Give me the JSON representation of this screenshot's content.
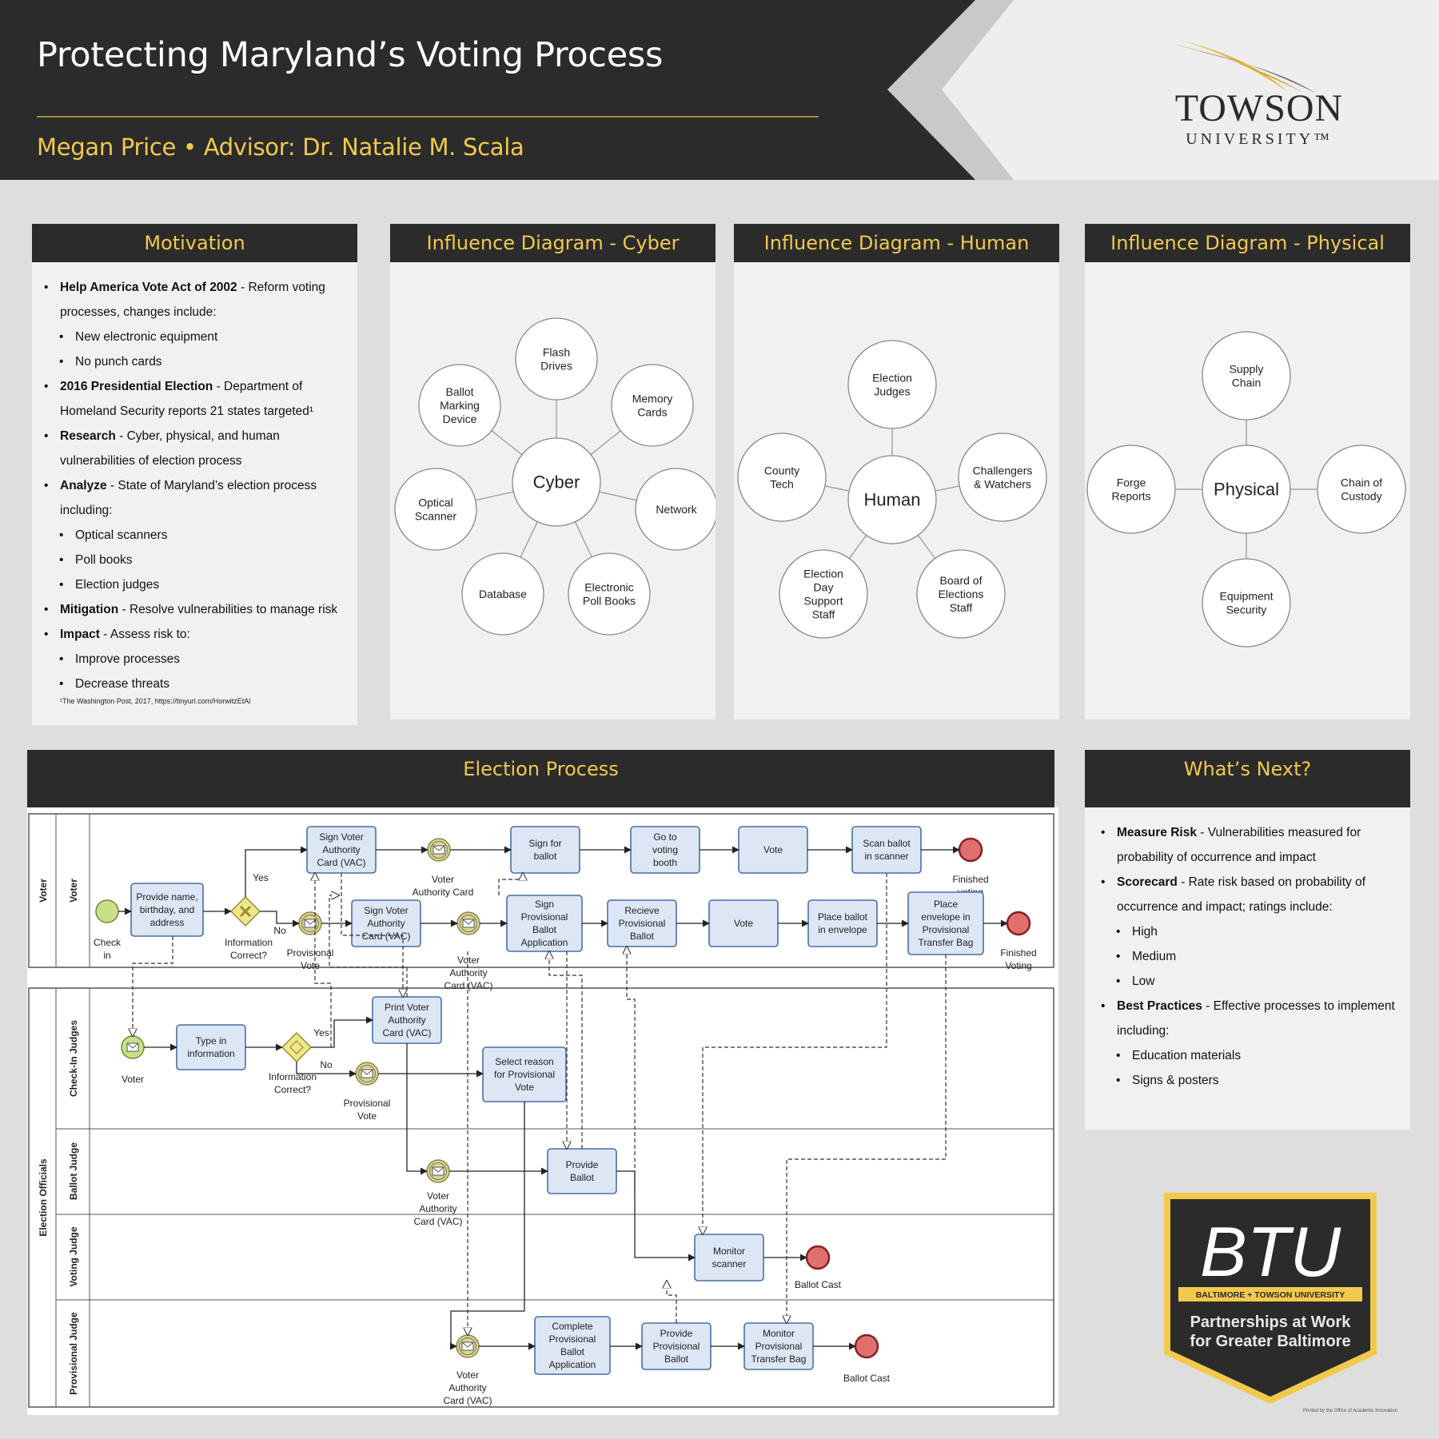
{
  "header": {
    "title": "Protecting Maryland’s Voting Process",
    "subtitle": "Megan Price • Advisor: Dr. Natalie M. Scala",
    "logo_name": "TOWSON",
    "logo_sub": "UNIVERSITY™"
  },
  "colors": {
    "dark": "#2b2b2b",
    "gold": "#f2c94c",
    "panel": "#f1f1f1",
    "task_fill": "#dce6f4",
    "task_stroke": "#4a6fa5",
    "start": "#c8e08a",
    "end": "#e07070"
  },
  "motivation": {
    "title": "Motivation",
    "items": [
      {
        "level": 1,
        "bold": "Help America Vote Act of 2002",
        "text": " - Reform voting processes, changes include:"
      },
      {
        "level": 2,
        "bold": "",
        "text": "New electronic equipment"
      },
      {
        "level": 2,
        "bold": "",
        "text": "No punch cards"
      },
      {
        "level": 1,
        "bold": "2016 Presidential Election",
        "text": " - Department of Homeland Security reports 21 states targeted¹"
      },
      {
        "level": 1,
        "bold": "Research",
        "text": " - Cyber, physical, and human vulnerabilities of election process"
      },
      {
        "level": 1,
        "bold": "Analyze",
        "text": " - State of Maryland’s election process including:"
      },
      {
        "level": 2,
        "bold": "",
        "text": "Optical scanners"
      },
      {
        "level": 2,
        "bold": "",
        "text": "Poll books"
      },
      {
        "level": 2,
        "bold": "",
        "text": "Election judges"
      },
      {
        "level": 1,
        "bold": "Mitigation",
        "text": " - Resolve vulnerabilities to manage risk"
      },
      {
        "level": 1,
        "bold": "Impact",
        "text": " - Assess risk to:"
      },
      {
        "level": 2,
        "bold": "",
        "text": "Improve processes"
      },
      {
        "level": 2,
        "bold": "",
        "text": "Decrease threats"
      }
    ],
    "footnote": "¹The Washington Post, 2017, https://tinyurl.com/HorwitzEtAl"
  },
  "cyber": {
    "title": "Influence Diagram - Cyber",
    "center": "Cyber",
    "nodes": [
      "Flash\nDrives",
      "Memory\nCards",
      "Network",
      "Electronic\nPoll Books",
      "Database",
      "Optical\nScanner",
      "Ballot\nMarking\nDevice"
    ]
  },
  "human": {
    "title": "Influence Diagram - Human",
    "center": "Human",
    "nodes": [
      "Election\nJudges",
      "Challengers\n& Watchers",
      "Board of\nElections\nStaff",
      "Election\nDay\nSupport\nStaff",
      "County\nTech"
    ]
  },
  "physical": {
    "title": "Influence Diagram - Physical",
    "center": "Physical",
    "nodes": [
      "Supply\nChain",
      "Chain of\nCustody",
      "Equipment\nSecurity",
      "Forge\nReports"
    ]
  },
  "election": {
    "title": "Election Process",
    "pools": [
      "Voter",
      "Election Officials"
    ],
    "lanes": [
      "Voter",
      "Check-In Judges",
      "Ballot Judge",
      "Voting Judge",
      "Provisional Judge"
    ],
    "tasks": {
      "provide_name": "Provide name,\nbirthday, and\naddress",
      "sign_vac": "Sign Voter\nAuthority\nCard (VAC)",
      "sign_vac2": "Sign Voter\nAuthority\nCard (VAC)",
      "sign_for_ballot": "Sign  for\nballot",
      "go_booth": "Go to\nvoting\nbooth",
      "vote1": "Vote",
      "scan_ballot": "Scan ballot\nin scanner",
      "sign_prov_app": "Sign\nProvisional\nBallot\nApplication",
      "receive_prov": "Recieve\nProvisional\nBallot",
      "vote2": "Vote",
      "place_envelope": "Place ballot\nin envelope",
      "place_bag": "Place\nenvelope in\nProvisional\nTransfer Bag",
      "type_info": "Type in\ninformation",
      "print_vac": "Print Voter\nAuthority\nCard (VAC)",
      "select_reason": "Select reason\nfor Provisional\nVote",
      "provide_ballot": "Provide\nBallot",
      "monitor_scanner": "Monitor\nscanner",
      "complete_prov": "Complete\nProvisional\nBallot\nApplication",
      "provide_prov": "Provide\nProvisional\nBallot",
      "monitor_bag": "Monitor\nProvisional\nTransfer Bag"
    },
    "labels": {
      "check_in": "Check\nin",
      "info_correct": "Information\nCorrect?",
      "yes": "Yes",
      "no": "No",
      "prov_vote": "Provisional\nVote",
      "vac": "Voter\nAuthority Card",
      "vac2": "Voter\nAuthority\nCard (VAC)",
      "finished_voting1": "Finished\nvoting",
      "finished_voting2": "Finished\nVoting",
      "voter": "Voter",
      "ballot_cast": "Ballot Cast"
    }
  },
  "next": {
    "title": "What’s Next?",
    "items": [
      {
        "level": 1,
        "bold": "Measure Risk",
        "text": " - Vulnerabilities measured for probability of occurrence and impact"
      },
      {
        "level": 1,
        "bold": "Scorecard",
        "text": " - Rate risk based on probability of occurrence and impact; ratings include:"
      },
      {
        "level": 2,
        "bold": "",
        "text": "High"
      },
      {
        "level": 2,
        "bold": "",
        "text": "Medium"
      },
      {
        "level": 2,
        "bold": "",
        "text": "Low"
      },
      {
        "level": 1,
        "bold": "Best Practices",
        "text": " - Effective processes to implement including:"
      },
      {
        "level": 2,
        "bold": "",
        "text": "Education materials"
      },
      {
        "level": 2,
        "bold": "",
        "text": "Signs & posters"
      }
    ]
  },
  "btu": {
    "mark": "BTU",
    "banner": "BALTIMORE + TOWSON UNIVERSITY",
    "tagline": "Partnerships at Work\nfor Greater Baltimore"
  },
  "printed": "Printed by the Office of Academic Innovation"
}
